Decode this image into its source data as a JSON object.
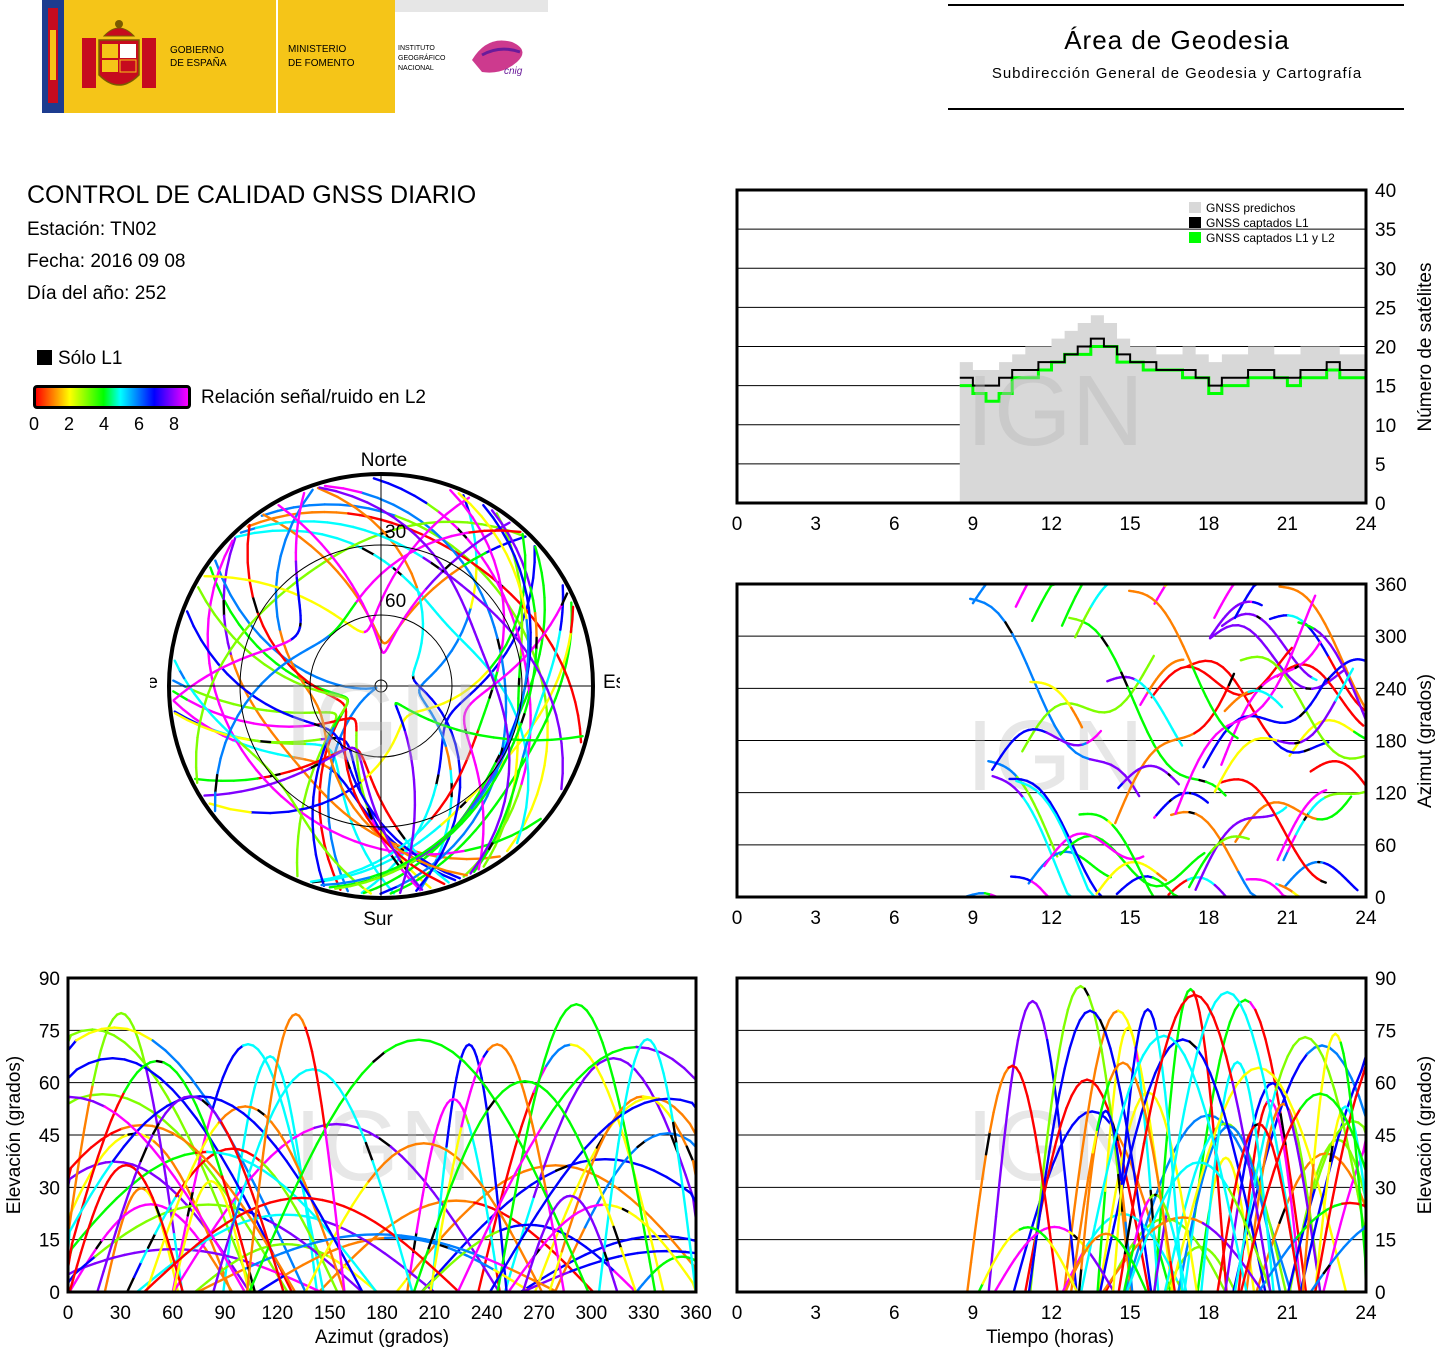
{
  "header": {
    "gov_line1": "GOBIERNO",
    "gov_line2": "DE ESPAÑA",
    "ministry_line1": "MINISTERIO",
    "ministry_line2": "DE FOMENTO",
    "ign_line1": "INSTITUTO",
    "ign_line2": "GEOGRÁFICO",
    "ign_line3": "NACIONAL",
    "cnig": "cnig",
    "area_title": "Área de Geodesia",
    "area_subtitle": "Subdirección General de Geodesia y Cartografía"
  },
  "info": {
    "title": "CONTROL DE CALIDAD GNSS DIARIO",
    "station": "Estación: TN02",
    "date": "Fecha: 2016 09 08",
    "doy": "Día del año: 252"
  },
  "legend": {
    "l1_only": "Sólo L1",
    "snr_label": "Relación señal/ruido en L2",
    "snr_ticks": [
      "0",
      "2",
      "4",
      "6",
      "8"
    ]
  },
  "watermark": "IGN",
  "colors": {
    "snr_scale": [
      "#ff0000",
      "#ff8000",
      "#ffff00",
      "#80ff00",
      "#00ff00",
      "#00ffff",
      "#0080ff",
      "#0000ff",
      "#8000ff",
      "#ff00ff"
    ],
    "predicted": "#d8d8d8",
    "l1": "#000000",
    "l1l2": "#00ff00"
  },
  "chart_data": [
    {
      "id": "skyplot",
      "type": "scatter",
      "title": "",
      "directions": {
        "north": "Norte",
        "south": "Sur",
        "west": "Oeste",
        "east": "Este"
      },
      "elevation_rings": [
        "30",
        "60"
      ]
    },
    {
      "id": "satellites",
      "type": "area",
      "xlabel": "",
      "ylabel": "Número de satélites",
      "xlim": [
        0,
        24
      ],
      "ylim": [
        0,
        40
      ],
      "xticks": [
        "0",
        "3",
        "6",
        "9",
        "12",
        "15",
        "18",
        "21",
        "24"
      ],
      "yticks": [
        "0",
        "5",
        "10",
        "15",
        "20",
        "25",
        "30",
        "35",
        "40"
      ],
      "legend": [
        "GNSS predichos",
        "GNSS captados L1",
        "GNSS captados L1 y L2"
      ],
      "legend_position": "top-right",
      "series": [
        {
          "name": "GNSS captados L1",
          "x": [
            8.5,
            9,
            9.5,
            10,
            10.5,
            11,
            11.5,
            12,
            12.5,
            13,
            13.5,
            14,
            14.5,
            15,
            15.5,
            16,
            16.5,
            17,
            17.5,
            18,
            18.5,
            19,
            19.5,
            20,
            20.5,
            21,
            21.5,
            22,
            22.5,
            23,
            23.5,
            24
          ],
          "values": [
            16,
            15,
            15,
            16,
            17,
            17,
            18,
            18,
            19,
            20,
            21,
            20,
            19,
            18,
            18,
            17,
            17,
            17,
            16,
            15,
            16,
            16,
            17,
            17,
            16,
            16,
            17,
            17,
            18,
            17,
            17,
            15
          ]
        },
        {
          "name": "GNSS captados L1 y L2",
          "x": [
            8.5,
            9,
            9.5,
            10,
            10.5,
            11,
            11.5,
            12,
            12.5,
            13,
            13.5,
            14,
            14.5,
            15,
            15.5,
            16,
            16.5,
            17,
            17.5,
            18,
            18.5,
            19,
            19.5,
            20,
            20.5,
            21,
            21.5,
            22,
            22.5,
            23,
            23.5,
            24
          ],
          "values": [
            15,
            14,
            13,
            14,
            16,
            16,
            17,
            18,
            19,
            19,
            20,
            20,
            18,
            18,
            17,
            17,
            17,
            16,
            16,
            14,
            15,
            15,
            16,
            16,
            16,
            15,
            16,
            16,
            17,
            16,
            16,
            14
          ]
        },
        {
          "name": "GNSS predichos",
          "x": [
            8.5,
            9,
            9.5,
            10,
            10.5,
            11,
            11.5,
            12,
            12.5,
            13,
            13.5,
            14,
            14.5,
            15,
            15.5,
            16,
            16.5,
            17,
            17.5,
            18,
            18.5,
            19,
            19.5,
            20,
            20.5,
            21,
            21.5,
            22,
            22.5,
            23,
            23.5,
            24
          ],
          "values": [
            18,
            17,
            17,
            18,
            19,
            20,
            20,
            21,
            22,
            23,
            24,
            23,
            21,
            20,
            20,
            19,
            19,
            20,
            19,
            18,
            19,
            19,
            20,
            20,
            19,
            19,
            20,
            20,
            20,
            19,
            19,
            18
          ]
        }
      ]
    },
    {
      "id": "azimuth-time",
      "type": "scatter",
      "xlabel": "",
      "ylabel": "Azimut (grados)",
      "xlim": [
        0,
        24
      ],
      "ylim": [
        0,
        360
      ],
      "xticks": [
        "0",
        "3",
        "6",
        "9",
        "12",
        "15",
        "18",
        "21",
        "24"
      ],
      "yticks": [
        "0",
        "60",
        "120",
        "180",
        "240",
        "300",
        "360"
      ]
    },
    {
      "id": "elevation-azimuth",
      "type": "scatter",
      "xlabel": "Azimut (grados)",
      "ylabel": "Elevación (grados)",
      "xlim": [
        0,
        360
      ],
      "ylim": [
        0,
        90
      ],
      "xticks": [
        "0",
        "30",
        "60",
        "90",
        "120",
        "150",
        "180",
        "210",
        "240",
        "270",
        "300",
        "330",
        "360"
      ],
      "yticks": [
        "0",
        "15",
        "30",
        "45",
        "60",
        "75",
        "90"
      ]
    },
    {
      "id": "elevation-time",
      "type": "scatter",
      "xlabel": "Tiempo (horas)",
      "ylabel": "Elevación (grados)",
      "xlim": [
        0,
        24
      ],
      "ylim": [
        0,
        90
      ],
      "xticks": [
        "0",
        "3",
        "6",
        "9",
        "12",
        "15",
        "18",
        "21",
        "24"
      ],
      "yticks": [
        "0",
        "15",
        "30",
        "45",
        "60",
        "75",
        "90"
      ]
    }
  ]
}
